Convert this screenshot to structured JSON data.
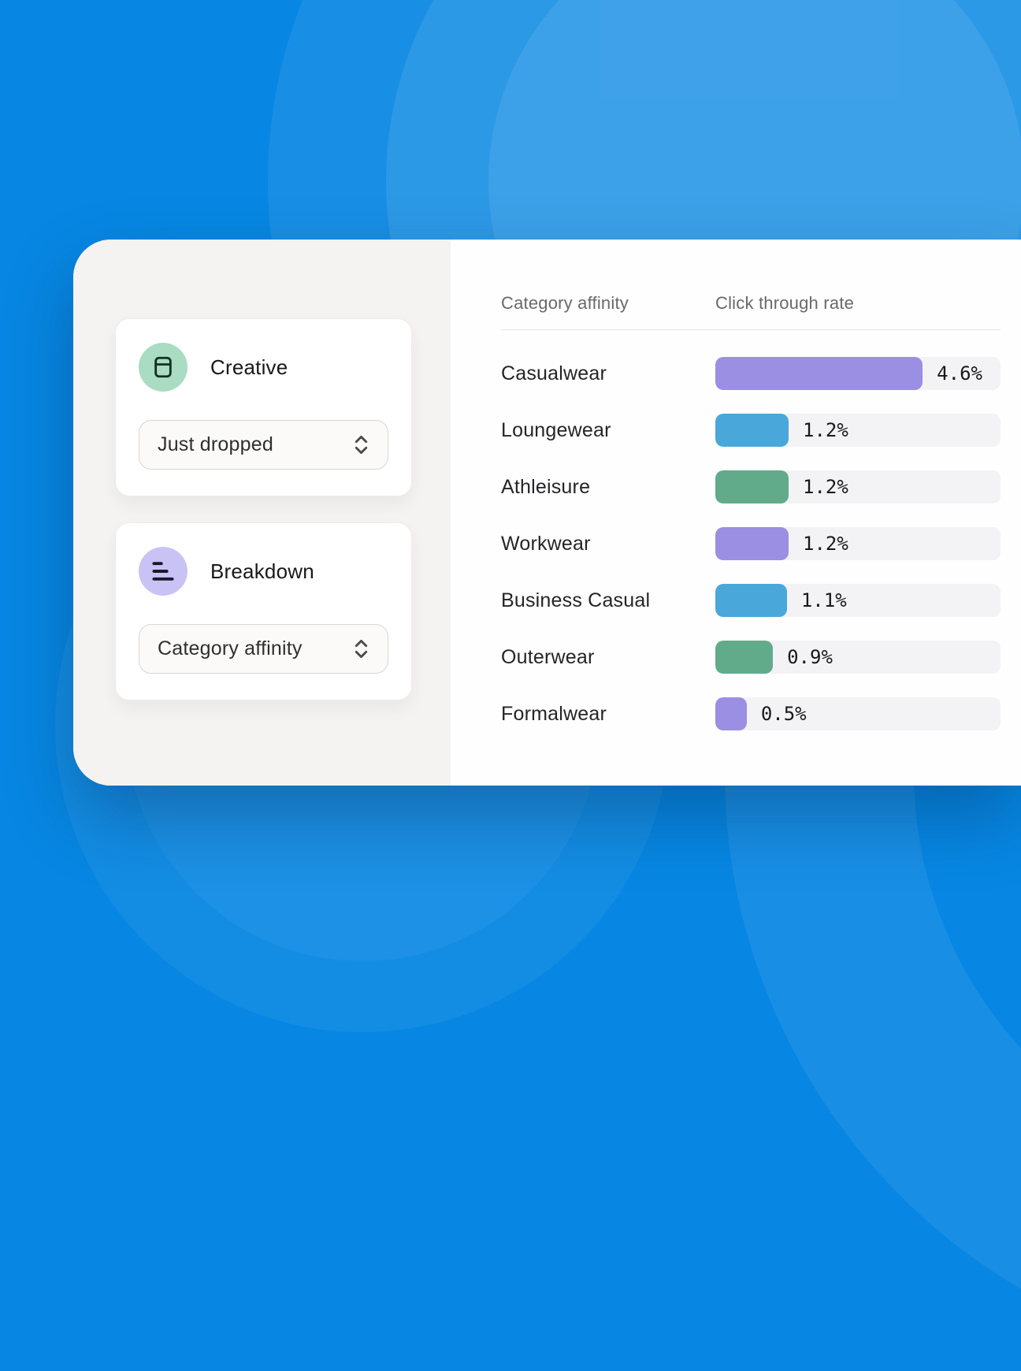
{
  "background": {
    "base_color": "#0787e3"
  },
  "sidebar": {
    "cards": [
      {
        "title": "Creative",
        "icon": "card-window-icon",
        "icon_bg": "#a9dcc2",
        "icon_stroke": "#11301f",
        "dropdown_value": "Just dropped"
      },
      {
        "title": "Breakdown",
        "icon": "bars-ascending-icon",
        "icon_bg": "#c9c3f5",
        "icon_stroke": "#191929",
        "dropdown_value": "Category affinity"
      }
    ]
  },
  "table": {
    "col1_header": "Category affinity",
    "col2_header": "Click through rate"
  },
  "chart_data": {
    "type": "bar",
    "orientation": "horizontal",
    "title": "",
    "xlabel": "Click through rate",
    "ylabel": "Category affinity",
    "legend": false,
    "categories": [
      "Casualwear",
      "Loungewear",
      "Athleisure",
      "Workwear",
      "Business Casual",
      "Outerwear",
      "Formalwear"
    ],
    "values": [
      4.6,
      1.2,
      1.2,
      1.2,
      1.1,
      0.9,
      0.5
    ],
    "value_labels": [
      "4.6%",
      "1.2%",
      "1.2%",
      "1.2%",
      "1.1%",
      "0.9%",
      "0.5%"
    ],
    "bar_colors": [
      "#9a8fe3",
      "#4aa7da",
      "#61ab8b",
      "#9a8fe3",
      "#4aa7da",
      "#61ab8b",
      "#9a8fe3"
    ],
    "bar_width_pct": [
      72.7,
      25.7,
      25.7,
      25.7,
      25.1,
      20.2,
      11.0
    ],
    "track_color": "#f3f2f4"
  }
}
